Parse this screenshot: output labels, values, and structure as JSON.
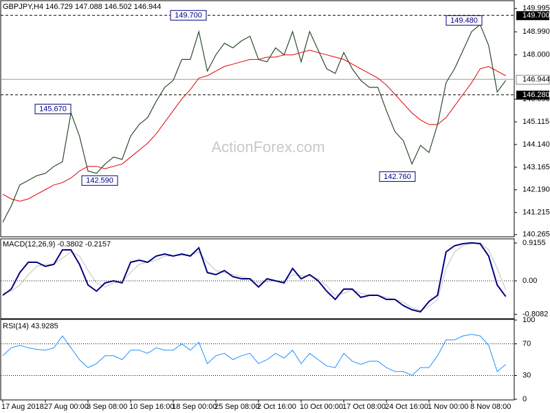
{
  "chart_data": [
    {
      "type": "line",
      "title": "GBPJPY,H4  146.729 147.088 146.502 146.944",
      "watermark": "ActionForex.com",
      "xlim": [
        0,
        60
      ],
      "xticks": [
        {
          "value": 0,
          "label": "17 Aug 2018"
        },
        {
          "value": 5,
          "label": "27 Aug 00:00"
        },
        {
          "value": 10,
          "label": "3 Sep 08:00"
        },
        {
          "value": 15,
          "label": "10 Sep 16:00"
        },
        {
          "value": 20,
          "label": "18 Sep 00:00"
        },
        {
          "value": 25,
          "label": "25 Sep 08:00"
        },
        {
          "value": 30,
          "label": "2 Oct 16:00"
        },
        {
          "value": 35,
          "label": "10 Oct 00:00"
        },
        {
          "value": 40,
          "label": "17 Oct 08:00"
        },
        {
          "value": 45,
          "label": "24 Oct 16:00"
        },
        {
          "value": 50,
          "label": "1 Nov 00:00"
        },
        {
          "value": 55,
          "label": "8 Nov 08:00"
        }
      ],
      "ylim": [
        140.2,
        150.3
      ],
      "yticks": [
        149.995,
        {
          "value": 148.99,
          "label": "148.990"
        },
        {
          "value": 148,
          "label": "148.000"
        },
        {
          "value": 146.09,
          "label": "146.090"
        },
        145.115,
        {
          "value": 144.14,
          "label": "144.140"
        },
        143.165,
        {
          "value": 142.19,
          "label": "142.190"
        },
        141.215,
        140.265
      ],
      "levels": [
        {
          "value": 149.7,
          "label": "149.700"
        },
        {
          "value": 146.28,
          "label": "146.280"
        }
      ],
      "last_price": {
        "value": 146.944,
        "label": "146.944"
      },
      "annotations": [
        {
          "value": 149.7,
          "label": "149.700"
        },
        {
          "value": 145.67,
          "label": "145.670"
        },
        {
          "value": 142.59,
          "label": "142.590"
        },
        {
          "value": 142.76,
          "label": "142.760"
        },
        {
          "value": 149.48,
          "label": "149.480"
        }
      ],
      "series": [
        {
          "color": "#2b4a2b",
          "width": 1.2,
          "values": [
            140.8,
            141.5,
            142.4,
            142.6,
            142.8,
            142.9,
            143.2,
            143.4,
            145.5,
            144.5,
            143.0,
            142.9,
            143.3,
            143.6,
            143.5,
            144.5,
            145.0,
            145.3,
            146.0,
            146.6,
            146.9,
            147.8,
            147.8,
            149.0,
            147.3,
            148.0,
            148.5,
            148.3,
            148.6,
            148.8,
            147.8,
            147.7,
            148.3,
            148.0,
            149.0,
            147.7,
            149.0,
            148.2,
            147.4,
            147.2,
            148.1,
            147.4,
            146.9,
            146.6,
            146.6,
            145.6,
            144.7,
            144.3,
            143.3,
            144.1,
            143.8,
            145.0,
            146.8,
            147.4,
            148.2,
            149.0,
            149.3,
            148.4,
            146.4,
            146.9
          ]
        },
        {
          "color": "#e00000",
          "width": 1,
          "values": [
            142.0,
            141.8,
            141.7,
            141.8,
            142.0,
            142.2,
            142.4,
            142.5,
            142.7,
            143.0,
            143.2,
            143.2,
            143.1,
            143.2,
            143.3,
            143.6,
            143.9,
            144.2,
            144.6,
            145.1,
            145.6,
            146.1,
            146.5,
            147.0,
            147.1,
            147.3,
            147.5,
            147.6,
            147.7,
            147.8,
            147.8,
            147.9,
            147.9,
            148.0,
            148.0,
            148.1,
            148.2,
            148.1,
            148.0,
            147.9,
            147.8,
            147.6,
            147.4,
            147.2,
            147.0,
            146.7,
            146.3,
            145.9,
            145.5,
            145.2,
            145.0,
            145.0,
            145.3,
            145.8,
            146.3,
            146.8,
            147.4,
            147.5,
            147.3,
            147.1
          ]
        }
      ]
    },
    {
      "type": "line",
      "title": "MACD(12,26,9) -0.3802 -0.2157",
      "ylim": [
        -0.9,
        1.0
      ],
      "yticks": [
        0.9155,
        {
          "value": 0,
          "label": "0.00"
        },
        -0.8082
      ],
      "levels": [
        0
      ],
      "series": [
        {
          "color": "#c0c0c0",
          "width": 1,
          "values": [
            -0.3,
            -0.25,
            -0.1,
            0.15,
            0.35,
            0.4,
            0.4,
            0.55,
            0.7,
            0.6,
            0.25,
            -0.05,
            -0.15,
            -0.05,
            -0.02,
            0.2,
            0.4,
            0.45,
            0.5,
            0.6,
            0.6,
            0.62,
            0.62,
            0.7,
            0.45,
            0.25,
            0.2,
            0.15,
            0.1,
            0.05,
            -0.05,
            -0.02,
            0.0,
            -0.02,
            0.15,
            0.12,
            0.12,
            0.05,
            -0.12,
            -0.35,
            -0.3,
            -0.22,
            -0.3,
            -0.35,
            -0.35,
            -0.4,
            -0.45,
            -0.52,
            -0.65,
            -0.72,
            -0.62,
            -0.45,
            0.3,
            0.7,
            0.85,
            0.9,
            0.92,
            0.75,
            0.3,
            -0.2157
          ]
        },
        {
          "color": "#000080",
          "width": 2,
          "values": [
            -0.35,
            -0.2,
            0.2,
            0.45,
            0.45,
            0.35,
            0.4,
            0.75,
            0.75,
            0.4,
            -0.1,
            -0.25,
            -0.05,
            0.0,
            -0.05,
            0.45,
            0.5,
            0.45,
            0.6,
            0.65,
            0.6,
            0.65,
            0.6,
            0.8,
            0.2,
            0.15,
            0.25,
            0.1,
            0.05,
            0.05,
            -0.15,
            0.05,
            0.0,
            -0.05,
            0.3,
            0.05,
            0.15,
            0.0,
            -0.25,
            -0.45,
            -0.2,
            -0.2,
            -0.4,
            -0.35,
            -0.35,
            -0.45,
            -0.45,
            -0.6,
            -0.7,
            -0.75,
            -0.5,
            -0.35,
            0.7,
            0.85,
            0.9,
            0.92,
            0.9,
            0.6,
            -0.1,
            -0.3802
          ]
        }
      ]
    },
    {
      "type": "line",
      "title": "RSI(14) 43.9285",
      "ylim": [
        0,
        100
      ],
      "yticks": [
        100,
        70,
        30,
        0
      ],
      "levels": [
        70,
        30
      ],
      "series": [
        {
          "color": "#1e90ff",
          "width": 1,
          "values": [
            55,
            65,
            68,
            65,
            63,
            62,
            65,
            80,
            65,
            50,
            40,
            45,
            55,
            55,
            50,
            62,
            62,
            58,
            65,
            62,
            62,
            70,
            62,
            72,
            45,
            55,
            58,
            50,
            55,
            58,
            45,
            50,
            58,
            52,
            62,
            45,
            58,
            50,
            42,
            40,
            58,
            48,
            44,
            48,
            48,
            40,
            35,
            35,
            30,
            40,
            40,
            55,
            75,
            75,
            80,
            82,
            80,
            68,
            35,
            43.9285
          ]
        }
      ]
    }
  ]
}
